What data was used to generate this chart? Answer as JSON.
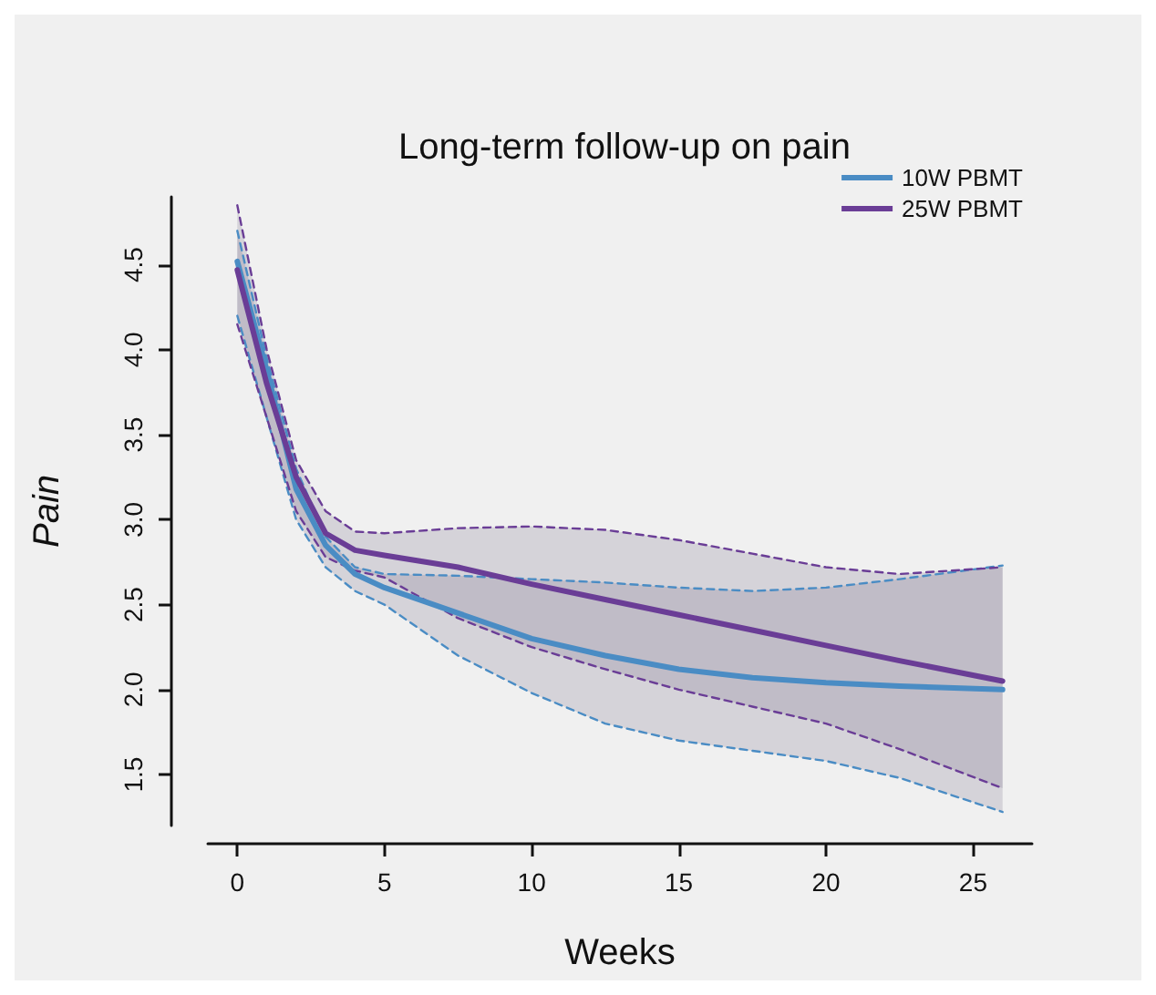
{
  "chart_data": {
    "type": "line",
    "title": "Long-term follow-up on pain",
    "xlabel": "Weeks",
    "ylabel": "Pain",
    "x": [
      0,
      1,
      2,
      3,
      4,
      5,
      7.5,
      10,
      12.5,
      15,
      17.5,
      20,
      22.5,
      26
    ],
    "series": [
      {
        "name": "10W PBMT",
        "color": "#4a8cc4",
        "values": [
          4.52,
          3.88,
          3.18,
          2.85,
          2.68,
          2.6,
          2.45,
          2.3,
          2.2,
          2.12,
          2.07,
          2.04,
          2.02,
          2.0
        ],
        "lower": [
          4.2,
          3.6,
          3.0,
          2.72,
          2.58,
          2.5,
          2.2,
          1.98,
          1.8,
          1.7,
          1.64,
          1.58,
          1.48,
          1.28
        ],
        "upper": [
          4.7,
          3.95,
          3.3,
          2.9,
          2.72,
          2.68,
          2.67,
          2.65,
          2.63,
          2.6,
          2.58,
          2.6,
          2.65,
          2.73
        ]
      },
      {
        "name": "25W PBMT",
        "color": "#6a3d96",
        "values": [
          4.47,
          3.8,
          3.25,
          2.92,
          2.82,
          2.79,
          2.72,
          2.62,
          2.53,
          2.44,
          2.35,
          2.26,
          2.17,
          2.05
        ],
        "lower": [
          4.15,
          3.6,
          3.05,
          2.78,
          2.7,
          2.66,
          2.42,
          2.25,
          2.12,
          2.0,
          1.9,
          1.8,
          1.65,
          1.42
        ],
        "upper": [
          4.85,
          4.0,
          3.35,
          3.05,
          2.93,
          2.92,
          2.95,
          2.96,
          2.94,
          2.88,
          2.8,
          2.72,
          2.68,
          2.72
        ]
      },
      {
        "color": "#4a8cc4",
        "line_style": "dashed",
        "values": [
          4.2,
          3.6,
          3.0,
          2.72,
          2.58,
          2.5,
          2.2,
          1.98,
          1.8,
          1.7,
          1.64,
          1.58,
          1.48,
          1.28
        ]
      },
      {
        "color": "#4a8cc4",
        "line_style": "dashed",
        "values": [
          4.7,
          3.95,
          3.3,
          2.9,
          2.72,
          2.68,
          2.67,
          2.65,
          2.63,
          2.6,
          2.58,
          2.6,
          2.65,
          2.73
        ]
      },
      {
        "color": "#6a3d96",
        "line_style": "dashed",
        "values": [
          4.15,
          3.6,
          3.05,
          2.78,
          2.7,
          2.66,
          2.42,
          2.25,
          2.12,
          2.0,
          1.9,
          1.8,
          1.65,
          1.42
        ]
      },
      {
        "color": "#6a3d96",
        "line_style": "dashed",
        "values": [
          4.85,
          4.0,
          3.35,
          3.05,
          2.93,
          2.92,
          2.95,
          2.96,
          2.94,
          2.88,
          2.8,
          2.72,
          2.68,
          2.72
        ]
      }
    ],
    "xlim": [
      -1,
      27
    ],
    "ylim": [
      1.2,
      4.9
    ],
    "xticks": [
      0,
      5,
      10,
      15,
      20,
      25
    ],
    "yticks": [
      1.5,
      {
        "value": 2,
        "label": "2.0"
      },
      2.5,
      {
        "value": 3,
        "label": "3.0"
      },
      3.5,
      {
        "value": 4,
        "label": "4.0"
      },
      4.5
    ],
    "legend": "top right",
    "line_style": "solid"
  }
}
